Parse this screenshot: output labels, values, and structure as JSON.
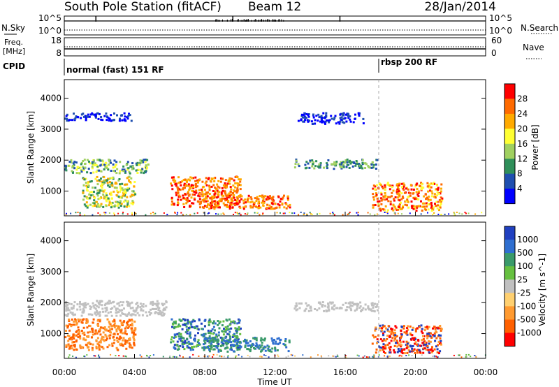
{
  "header": {
    "station": "South Pole Station (fitACF)",
    "beam": "Beam 12",
    "date": "28/Jan/2014"
  },
  "top_panels": {
    "nsky_label": "N.Sky",
    "nsearch_label": "N.Search",
    "nsky_tick_hi": "10^5",
    "nsky_tick_lo": "10^0",
    "freq_label_1": "Freq.",
    "freq_label_2": "[MHz]",
    "freq_tick_hi": "18",
    "freq_tick_lo": "8",
    "nave_label": "Nave",
    "nave_tick_hi": "60",
    "nave_tick_lo": "0",
    "cpid_label": "CPID",
    "cpid_1": "normal (fast) 151 RF",
    "cpid_2": "rbsp 200 RF"
  },
  "chart_data": [
    {
      "type": "heatmap",
      "name": "power",
      "ylabel": "Slant Range [km]",
      "yticks": [
        1000,
        2000,
        3000,
        4000
      ],
      "ylim": [
        200,
        4600
      ],
      "xlim": [
        0,
        24
      ],
      "colorbar": {
        "label": "Power [dB]",
        "ticks": [
          "28",
          "24",
          "20",
          "16",
          "12",
          "8",
          "4"
        ],
        "colors": [
          "#ff0000",
          "#ff6a00",
          "#ffaa00",
          "#ffff33",
          "#a0d060",
          "#2f8f5a",
          "#1f4fb0",
          "#0000ff"
        ]
      },
      "regions": [
        {
          "t0": 0.0,
          "t1": 4.8,
          "r0": 1600,
          "r1": 2050,
          "level": "8-16 dB"
        },
        {
          "t0": 0.0,
          "t1": 3.8,
          "r0": 3300,
          "r1": 3550,
          "level": "4-8 dB"
        },
        {
          "t0": 1.0,
          "t1": 4.0,
          "r0": 500,
          "r1": 1500,
          "level": "12-20 dB"
        },
        {
          "t0": 6.0,
          "t1": 10.0,
          "r0": 500,
          "r1": 1500,
          "level": "20-28 dB"
        },
        {
          "t0": 7.8,
          "t1": 12.8,
          "r0": 450,
          "r1": 900,
          "level": "20-28 dB"
        },
        {
          "t0": 13.0,
          "t1": 17.8,
          "r0": 1750,
          "r1": 2050,
          "level": "4-12 dB"
        },
        {
          "t0": 13.2,
          "t1": 17.0,
          "r0": 3200,
          "r1": 3550,
          "level": "4-8 dB"
        },
        {
          "t0": 17.5,
          "t1": 21.5,
          "r0": 400,
          "r1": 1300,
          "level": "16-28 dB"
        }
      ]
    },
    {
      "type": "heatmap",
      "name": "velocity",
      "ylabel": "Slant Range [km]",
      "xlabel": "Time UT",
      "yticks": [
        1000,
        2000,
        3000,
        4000
      ],
      "ylim": [
        200,
        4600
      ],
      "xlim": [
        0,
        24
      ],
      "xticks": [
        "00:00",
        "04:00",
        "08:00",
        "12:00",
        "16:00",
        "20:00",
        "00:00"
      ],
      "colorbar": {
        "label": "Velocity [m s^-1]",
        "ticks": [
          "1000",
          "500",
          "100",
          "25",
          "-25",
          "-100",
          "-500",
          "-1000"
        ],
        "colors": [
          "#2040c0",
          "#2f6fd0",
          "#3a9a6a",
          "#66c040",
          "#c0c0c0",
          "#ffd070",
          "#ff9a30",
          "#ff6000",
          "#ff0000"
        ]
      },
      "regions": [
        {
          "t0": 0.0,
          "t1": 5.8,
          "r0": 1600,
          "r1": 2100,
          "level": "-25 to 25 m/s"
        },
        {
          "t0": 0.0,
          "t1": 4.0,
          "r0": 500,
          "r1": 1500,
          "level": "-100 to -500 m/s"
        },
        {
          "t0": 6.0,
          "t1": 10.0,
          "r0": 500,
          "r1": 1500,
          "level": "100 to 1000 m/s"
        },
        {
          "t0": 7.8,
          "t1": 12.8,
          "r0": 450,
          "r1": 900,
          "level": "100 to 500 m/s"
        },
        {
          "t0": 13.0,
          "t1": 17.8,
          "r0": 1750,
          "r1": 2050,
          "level": "-25 to 25 m/s"
        },
        {
          "t0": 17.5,
          "t1": 21.5,
          "r0": 400,
          "r1": 1300,
          "level": "-100 to -1000 m/s"
        }
      ]
    }
  ]
}
